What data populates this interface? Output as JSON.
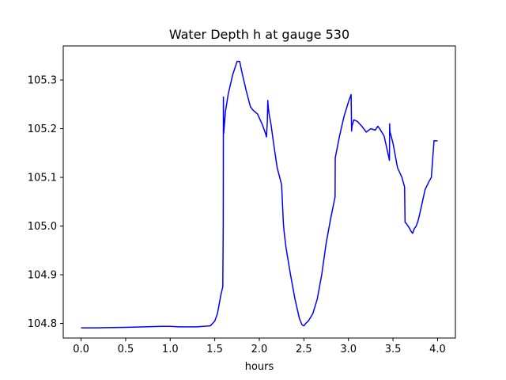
{
  "chart_data": {
    "type": "line",
    "title": "Water Depth h at gauge 530",
    "xlabel": "hours",
    "ylabel": "",
    "xlim": [
      -0.2,
      4.2
    ],
    "ylim": [
      104.77,
      105.37
    ],
    "xticks": [
      0.0,
      0.5,
      1.0,
      1.5,
      2.0,
      2.5,
      3.0,
      3.5,
      4.0
    ],
    "xtick_labels": [
      "0.0",
      "0.5",
      "1.0",
      "1.5",
      "2.0",
      "2.5",
      "3.0",
      "3.5",
      "4.0"
    ],
    "yticks": [
      104.8,
      104.9,
      105.0,
      105.1,
      105.2,
      105.3
    ],
    "ytick_labels": [
      "104.8",
      "104.9",
      "105.0",
      "105.1",
      "105.2",
      "105.3"
    ],
    "grid": false,
    "series": [
      {
        "color": "#0000ff",
        "x": [
          0.0,
          0.2,
          0.5,
          0.7,
          0.9,
          1.0,
          1.1,
          1.3,
          1.45,
          1.5,
          1.53,
          1.55,
          1.57,
          1.59,
          1.595,
          1.597,
          1.6,
          1.62,
          1.65,
          1.7,
          1.75,
          1.78,
          1.8,
          1.85,
          1.9,
          1.93,
          1.98,
          2.03,
          2.07,
          2.08,
          2.09,
          2.095,
          2.1,
          2.11,
          2.13,
          2.16,
          2.2,
          2.25,
          2.27,
          2.28,
          2.29,
          2.3,
          2.35,
          2.4,
          2.45,
          2.48,
          2.5,
          2.52,
          2.55,
          2.6,
          2.65,
          2.7,
          2.75,
          2.8,
          2.85,
          2.852,
          2.9,
          2.95,
          3.0,
          3.03,
          3.035,
          3.04,
          3.06,
          3.1,
          3.15,
          3.2,
          3.25,
          3.3,
          3.33,
          3.35,
          3.4,
          3.43,
          3.46,
          3.462,
          3.465,
          3.5,
          3.52,
          3.55,
          3.6,
          3.63,
          3.635,
          3.65,
          3.68,
          3.7,
          3.72,
          3.74,
          3.76,
          3.78,
          3.8,
          3.83,
          3.86,
          3.9,
          3.93,
          3.96,
          3.965,
          4.0
        ],
        "y": [
          104.791,
          104.791,
          104.792,
          104.793,
          104.794,
          104.794,
          104.793,
          104.793,
          104.795,
          104.805,
          104.82,
          104.84,
          104.86,
          104.875,
          105.0,
          105.265,
          105.19,
          105.235,
          105.27,
          105.31,
          105.338,
          105.338,
          105.32,
          105.28,
          105.245,
          105.238,
          105.23,
          105.21,
          105.19,
          105.183,
          105.215,
          105.258,
          105.245,
          105.23,
          105.21,
          105.17,
          105.12,
          105.085,
          105.005,
          104.985,
          104.97,
          104.955,
          104.9,
          104.85,
          104.81,
          104.797,
          104.795,
          104.8,
          104.805,
          104.82,
          104.85,
          104.9,
          104.965,
          105.015,
          105.06,
          105.14,
          105.185,
          105.225,
          105.255,
          105.27,
          105.195,
          105.205,
          105.218,
          105.215,
          105.205,
          105.193,
          105.2,
          105.197,
          105.205,
          105.2,
          105.185,
          105.16,
          105.135,
          105.21,
          105.195,
          105.17,
          105.15,
          105.12,
          105.1,
          105.08,
          105.008,
          105.005,
          104.997,
          104.99,
          104.985,
          104.995,
          105.0,
          105.01,
          105.025,
          105.05,
          105.075,
          105.09,
          105.1,
          105.175,
          105.175,
          105.175
        ]
      }
    ]
  }
}
